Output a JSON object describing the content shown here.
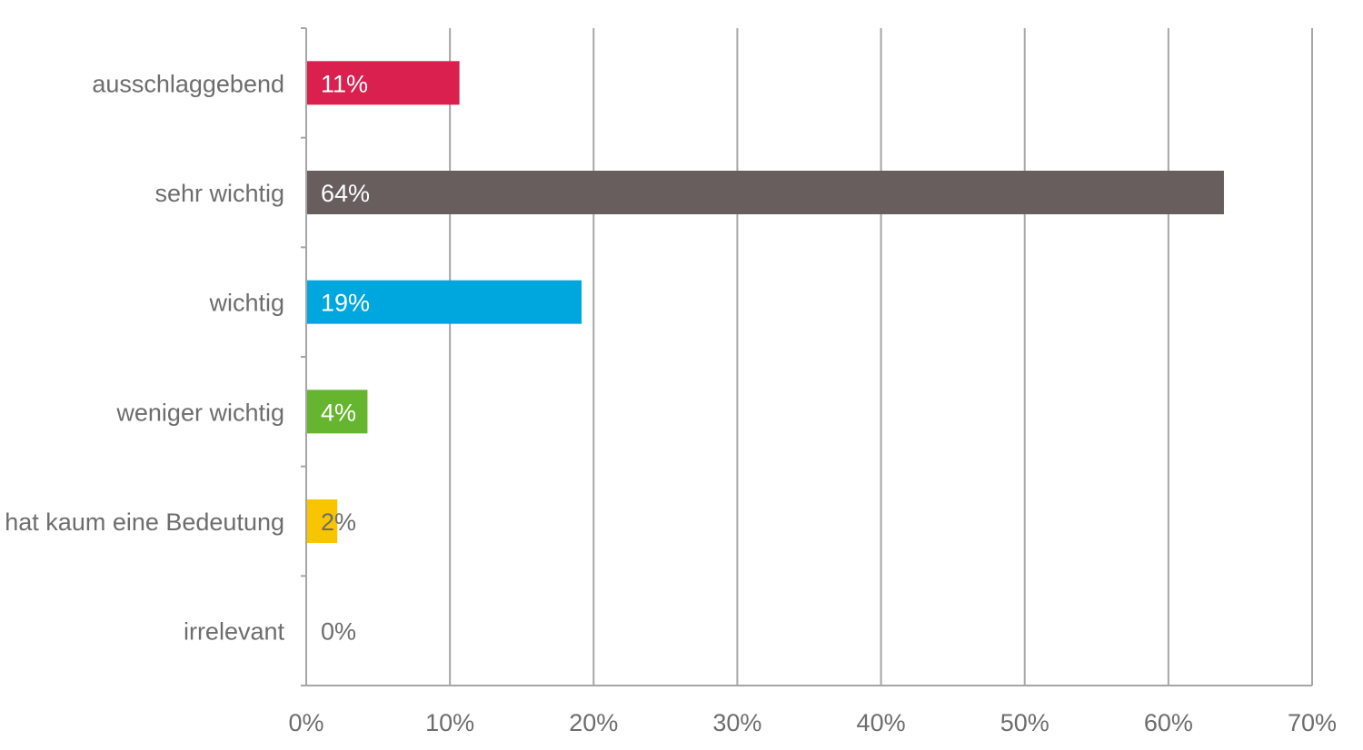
{
  "chart_data": {
    "type": "bar",
    "orientation": "horizontal",
    "title": "",
    "xlabel": "",
    "ylabel": "",
    "categories": [
      "ausschlaggebend",
      "sehr wichtig",
      "wichtig",
      "weniger wichtig",
      "hat kaum eine Bedeutung",
      "irrelevant"
    ],
    "values": [
      10.6,
      63.8,
      19.1,
      4.2,
      2.1,
      0
    ],
    "data_labels": [
      "11%",
      "64%",
      "19%",
      "4%",
      "2%",
      "0%"
    ],
    "colors": [
      "#d9204f",
      "#685e5d",
      "#00a7df",
      "#66b52f",
      "#f8c500",
      "#ffffff"
    ],
    "label_colors": [
      "#ffffff",
      "#ffffff",
      "#ffffff",
      "#ffffff",
      "#6d6d6d",
      "#6d6d6d"
    ],
    "xlim": [
      0,
      70
    ],
    "x_ticks": [
      0,
      10,
      20,
      30,
      40,
      50,
      60,
      70
    ],
    "x_tick_labels": [
      "0%",
      "10%",
      "20%",
      "30%",
      "40%",
      "50%",
      "60%",
      "70%"
    ],
    "grid": "vertical",
    "legend": "none"
  }
}
